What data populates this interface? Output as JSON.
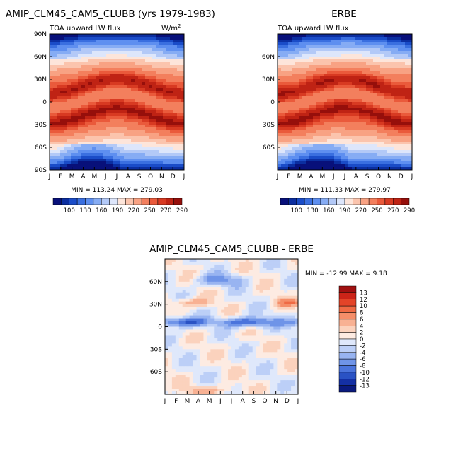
{
  "panels": {
    "model": {
      "title": "AMIP_CLM45_CAM5_CLUBB (yrs 1979-1983)",
      "subtitle": "TOA upward LW flux",
      "units_label": "W/m",
      "units_sup": "2",
      "stats": "MIN = 113.24  MAX = 279.03",
      "y_ticks": [
        "90N",
        "60N",
        "30N",
        "0",
        "30S",
        "60S",
        "90S"
      ],
      "x_ticks": [
        "J",
        "F",
        "M",
        "A",
        "M",
        "J",
        "J",
        "A",
        "S",
        "O",
        "N",
        "D",
        "J"
      ]
    },
    "obs": {
      "title": "ERBE",
      "subtitle": "TOA upward LW flux",
      "stats": "MIN = 111.33  MAX = 279.97",
      "y_ticks": [
        "60N",
        "30N",
        "0",
        "30S",
        "60S"
      ],
      "x_ticks": [
        "J",
        "F",
        "M",
        "A",
        "M",
        "J",
        "J",
        "A",
        "S",
        "O",
        "N",
        "D",
        "J"
      ]
    },
    "diff": {
      "title": "AMIP_CLM45_CAM5_CLUBB - ERBE",
      "stats": "MIN = -12.99  MAX =    9.18",
      "y_ticks": [
        "60N",
        "30N",
        "0",
        "30S",
        "60S"
      ],
      "x_ticks": [
        "J",
        "F",
        "M",
        "A",
        "M",
        "J",
        "J",
        "A",
        "S",
        "O",
        "N",
        "D",
        "J"
      ]
    }
  },
  "colorbars": {
    "flux": {
      "labels": [
        "100",
        "130",
        "160",
        "190",
        "220",
        "250",
        "270",
        "290"
      ],
      "colors": [
        "#08107a",
        "#0b2ea0",
        "#1a4cc8",
        "#3a6fe0",
        "#5e8ff0",
        "#86acf4",
        "#b3c9f7",
        "#dde6fb",
        "#fde5da",
        "#fbc4ad",
        "#f8a283",
        "#f37f5d",
        "#ea5a3b",
        "#d83a22",
        "#bf2314",
        "#960f0b"
      ]
    },
    "diff": {
      "labels": [
        "13",
        "12",
        "10",
        "8",
        "6",
        "4",
        "2",
        "0",
        "-2",
        "-4",
        "-6",
        "-8",
        "-10",
        "-12",
        "-13"
      ],
      "colors": [
        "#a01010",
        "#cc2418",
        "#e34428",
        "#ef6a44",
        "#f58e69",
        "#f8b193",
        "#fbd2bd",
        "#fdebe2",
        "#dfe8fb",
        "#bccff7",
        "#98b4f1",
        "#6f94e8",
        "#4b74dc",
        "#2a52c4",
        "#1430a4",
        "#0a1a7e"
      ]
    }
  },
  "chart_data": [
    {
      "type": "heatmap",
      "title": "AMIP_CLM45_CAM5_CLUBB (yrs 1979-1983)",
      "subtitle": "TOA upward LW flux",
      "units": "W/m^2",
      "x": [
        "J",
        "F",
        "M",
        "A",
        "M",
        "J",
        "J",
        "A",
        "S",
        "O",
        "N",
        "D",
        "J"
      ],
      "y": [
        "90N",
        "60N",
        "30N",
        "0",
        "30S",
        "60S",
        "90S"
      ],
      "ylim": [
        -90,
        90
      ],
      "min": 113.24,
      "max": 279.03,
      "colorbar_levels": [
        100,
        130,
        160,
        190,
        220,
        250,
        270,
        290
      ]
    },
    {
      "type": "heatmap",
      "title": "ERBE",
      "subtitle": "TOA upward LW flux",
      "x": [
        "J",
        "F",
        "M",
        "A",
        "M",
        "J",
        "J",
        "A",
        "S",
        "O",
        "N",
        "D",
        "J"
      ],
      "y": [
        "60N",
        "30N",
        "0",
        "30S",
        "60S"
      ],
      "ylim": [
        -90,
        90
      ],
      "min": 111.33,
      "max": 279.97,
      "colorbar_levels": [
        100,
        130,
        160,
        190,
        220,
        250,
        270,
        290
      ]
    },
    {
      "type": "heatmap",
      "title": "AMIP_CLM45_CAM5_CLUBB - ERBE",
      "x": [
        "J",
        "F",
        "M",
        "A",
        "M",
        "J",
        "J",
        "A",
        "S",
        "O",
        "N",
        "D",
        "J"
      ],
      "y": [
        "60N",
        "30N",
        "0",
        "30S",
        "60S"
      ],
      "ylim": [
        -90,
        90
      ],
      "min": -12.99,
      "max": 9.18,
      "colorbar_levels": [
        13,
        12,
        10,
        8,
        6,
        4,
        2,
        0,
        -2,
        -4,
        -6,
        -8,
        -10,
        -12,
        -13
      ]
    }
  ]
}
